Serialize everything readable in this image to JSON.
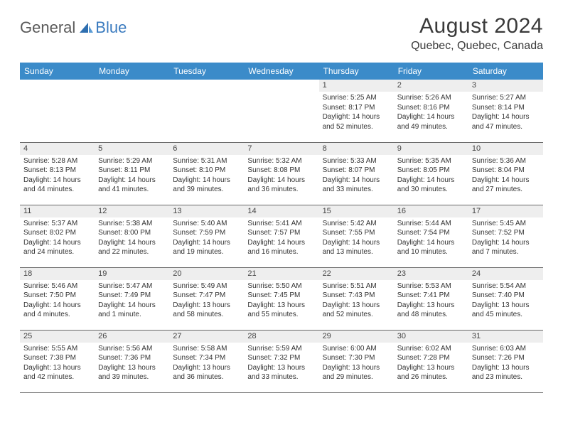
{
  "logo": {
    "text1": "General",
    "text2": "Blue",
    "color_general": "#5a5a5a",
    "color_blue": "#3b7bbf"
  },
  "header": {
    "month_title": "August 2024",
    "location": "Quebec, Quebec, Canada"
  },
  "weekdays": [
    "Sunday",
    "Monday",
    "Tuesday",
    "Wednesday",
    "Thursday",
    "Friday",
    "Saturday"
  ],
  "colors": {
    "header_bg": "#3b8bc9",
    "header_text": "#ffffff",
    "daynum_bg": "#eeeeee",
    "border": "#6a6a6a",
    "text": "#333333"
  },
  "weeks": [
    [
      {
        "day": "",
        "sunrise": "",
        "sunset": "",
        "daylight": ""
      },
      {
        "day": "",
        "sunrise": "",
        "sunset": "",
        "daylight": ""
      },
      {
        "day": "",
        "sunrise": "",
        "sunset": "",
        "daylight": ""
      },
      {
        "day": "",
        "sunrise": "",
        "sunset": "",
        "daylight": ""
      },
      {
        "day": "1",
        "sunrise": "Sunrise: 5:25 AM",
        "sunset": "Sunset: 8:17 PM",
        "daylight": "Daylight: 14 hours and 52 minutes."
      },
      {
        "day": "2",
        "sunrise": "Sunrise: 5:26 AM",
        "sunset": "Sunset: 8:16 PM",
        "daylight": "Daylight: 14 hours and 49 minutes."
      },
      {
        "day": "3",
        "sunrise": "Sunrise: 5:27 AM",
        "sunset": "Sunset: 8:14 PM",
        "daylight": "Daylight: 14 hours and 47 minutes."
      }
    ],
    [
      {
        "day": "4",
        "sunrise": "Sunrise: 5:28 AM",
        "sunset": "Sunset: 8:13 PM",
        "daylight": "Daylight: 14 hours and 44 minutes."
      },
      {
        "day": "5",
        "sunrise": "Sunrise: 5:29 AM",
        "sunset": "Sunset: 8:11 PM",
        "daylight": "Daylight: 14 hours and 41 minutes."
      },
      {
        "day": "6",
        "sunrise": "Sunrise: 5:31 AM",
        "sunset": "Sunset: 8:10 PM",
        "daylight": "Daylight: 14 hours and 39 minutes."
      },
      {
        "day": "7",
        "sunrise": "Sunrise: 5:32 AM",
        "sunset": "Sunset: 8:08 PM",
        "daylight": "Daylight: 14 hours and 36 minutes."
      },
      {
        "day": "8",
        "sunrise": "Sunrise: 5:33 AM",
        "sunset": "Sunset: 8:07 PM",
        "daylight": "Daylight: 14 hours and 33 minutes."
      },
      {
        "day": "9",
        "sunrise": "Sunrise: 5:35 AM",
        "sunset": "Sunset: 8:05 PM",
        "daylight": "Daylight: 14 hours and 30 minutes."
      },
      {
        "day": "10",
        "sunrise": "Sunrise: 5:36 AM",
        "sunset": "Sunset: 8:04 PM",
        "daylight": "Daylight: 14 hours and 27 minutes."
      }
    ],
    [
      {
        "day": "11",
        "sunrise": "Sunrise: 5:37 AM",
        "sunset": "Sunset: 8:02 PM",
        "daylight": "Daylight: 14 hours and 24 minutes."
      },
      {
        "day": "12",
        "sunrise": "Sunrise: 5:38 AM",
        "sunset": "Sunset: 8:00 PM",
        "daylight": "Daylight: 14 hours and 22 minutes."
      },
      {
        "day": "13",
        "sunrise": "Sunrise: 5:40 AM",
        "sunset": "Sunset: 7:59 PM",
        "daylight": "Daylight: 14 hours and 19 minutes."
      },
      {
        "day": "14",
        "sunrise": "Sunrise: 5:41 AM",
        "sunset": "Sunset: 7:57 PM",
        "daylight": "Daylight: 14 hours and 16 minutes."
      },
      {
        "day": "15",
        "sunrise": "Sunrise: 5:42 AM",
        "sunset": "Sunset: 7:55 PM",
        "daylight": "Daylight: 14 hours and 13 minutes."
      },
      {
        "day": "16",
        "sunrise": "Sunrise: 5:44 AM",
        "sunset": "Sunset: 7:54 PM",
        "daylight": "Daylight: 14 hours and 10 minutes."
      },
      {
        "day": "17",
        "sunrise": "Sunrise: 5:45 AM",
        "sunset": "Sunset: 7:52 PM",
        "daylight": "Daylight: 14 hours and 7 minutes."
      }
    ],
    [
      {
        "day": "18",
        "sunrise": "Sunrise: 5:46 AM",
        "sunset": "Sunset: 7:50 PM",
        "daylight": "Daylight: 14 hours and 4 minutes."
      },
      {
        "day": "19",
        "sunrise": "Sunrise: 5:47 AM",
        "sunset": "Sunset: 7:49 PM",
        "daylight": "Daylight: 14 hours and 1 minute."
      },
      {
        "day": "20",
        "sunrise": "Sunrise: 5:49 AM",
        "sunset": "Sunset: 7:47 PM",
        "daylight": "Daylight: 13 hours and 58 minutes."
      },
      {
        "day": "21",
        "sunrise": "Sunrise: 5:50 AM",
        "sunset": "Sunset: 7:45 PM",
        "daylight": "Daylight: 13 hours and 55 minutes."
      },
      {
        "day": "22",
        "sunrise": "Sunrise: 5:51 AM",
        "sunset": "Sunset: 7:43 PM",
        "daylight": "Daylight: 13 hours and 52 minutes."
      },
      {
        "day": "23",
        "sunrise": "Sunrise: 5:53 AM",
        "sunset": "Sunset: 7:41 PM",
        "daylight": "Daylight: 13 hours and 48 minutes."
      },
      {
        "day": "24",
        "sunrise": "Sunrise: 5:54 AM",
        "sunset": "Sunset: 7:40 PM",
        "daylight": "Daylight: 13 hours and 45 minutes."
      }
    ],
    [
      {
        "day": "25",
        "sunrise": "Sunrise: 5:55 AM",
        "sunset": "Sunset: 7:38 PM",
        "daylight": "Daylight: 13 hours and 42 minutes."
      },
      {
        "day": "26",
        "sunrise": "Sunrise: 5:56 AM",
        "sunset": "Sunset: 7:36 PM",
        "daylight": "Daylight: 13 hours and 39 minutes."
      },
      {
        "day": "27",
        "sunrise": "Sunrise: 5:58 AM",
        "sunset": "Sunset: 7:34 PM",
        "daylight": "Daylight: 13 hours and 36 minutes."
      },
      {
        "day": "28",
        "sunrise": "Sunrise: 5:59 AM",
        "sunset": "Sunset: 7:32 PM",
        "daylight": "Daylight: 13 hours and 33 minutes."
      },
      {
        "day": "29",
        "sunrise": "Sunrise: 6:00 AM",
        "sunset": "Sunset: 7:30 PM",
        "daylight": "Daylight: 13 hours and 29 minutes."
      },
      {
        "day": "30",
        "sunrise": "Sunrise: 6:02 AM",
        "sunset": "Sunset: 7:28 PM",
        "daylight": "Daylight: 13 hours and 26 minutes."
      },
      {
        "day": "31",
        "sunrise": "Sunrise: 6:03 AM",
        "sunset": "Sunset: 7:26 PM",
        "daylight": "Daylight: 13 hours and 23 minutes."
      }
    ]
  ]
}
